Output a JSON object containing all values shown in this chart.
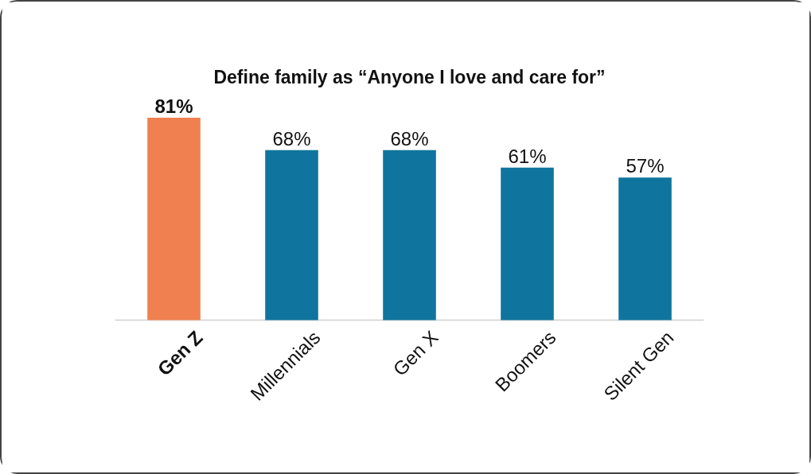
{
  "chart_data": {
    "type": "bar",
    "title": "Define family as “Anyone I love and care for”",
    "categories": [
      "Gen Z",
      "Millennials",
      "Gen X",
      "Boomers",
      "Silent Gen"
    ],
    "values": [
      81,
      68,
      68,
      61,
      57
    ],
    "colors": [
      "#f08050",
      "#10759e",
      "#10759e",
      "#10759e",
      "#10759e"
    ],
    "value_labels": [
      "81%",
      "68%",
      "68%",
      "61%",
      "57%"
    ],
    "grid": false
  }
}
